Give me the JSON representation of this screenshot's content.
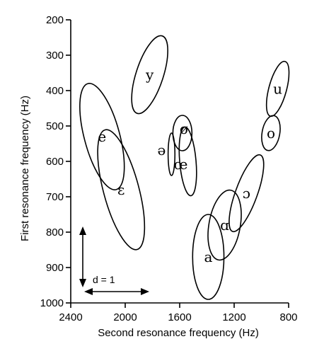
{
  "chart_data": {
    "type": "scatter",
    "title": "",
    "xlabel": "Second resonance frequency  (Hz)",
    "ylabel": "First resonance frequency  (Hz)",
    "xlim": [
      2400,
      800
    ],
    "ylim": [
      1000,
      200
    ],
    "x_reversed": true,
    "y_reversed": true,
    "xticks": [
      2400,
      2000,
      1600,
      1200,
      800
    ],
    "yticks": [
      200,
      300,
      400,
      500,
      600,
      700,
      800,
      900,
      1000
    ],
    "grid": false,
    "legend": "none",
    "points": [
      {
        "label": "y",
        "f2": 1820,
        "f1": 355,
        "w2": 200,
        "w1": 230,
        "rot": 18
      },
      {
        "label": "e",
        "f2": 2170,
        "f1": 530,
        "w2": 260,
        "w1": 310,
        "rot": -15
      },
      {
        "label": "ɛ",
        "f2": 2030,
        "f1": 680,
        "w2": 260,
        "w1": 350,
        "rot": -15
      },
      {
        "label": "ø",
        "f2": 1580,
        "f1": 520,
        "w2": 140,
        "w1": 100,
        "rot": 0
      },
      {
        "label": "ə",
        "f2": 1660,
        "f1": 580,
        "w2": 50,
        "w1": 120,
        "rot": 0
      },
      {
        "label": "œ",
        "f2": 1540,
        "f1": 600,
        "w2": 120,
        "w1": 195,
        "rot": -5
      },
      {
        "label": "ɑ",
        "f2": 1270,
        "f1": 780,
        "w2": 230,
        "w1": 200,
        "rot": 10
      },
      {
        "label": "a",
        "f2": 1390,
        "f1": 870,
        "w2": 230,
        "w1": 240,
        "rot": 0
      },
      {
        "label": "ɔ",
        "f2": 1110,
        "f1": 690,
        "w2": 160,
        "w1": 230,
        "rot": 20
      },
      {
        "label": "o",
        "f2": 930,
        "f1": 520,
        "w2": 130,
        "w1": 100,
        "rot": 10
      },
      {
        "label": "u",
        "f2": 880,
        "f1": 395,
        "w2": 130,
        "w1": 160,
        "rot": 15
      }
    ],
    "scale_indicator": {
      "label": "d = 1"
    }
  }
}
